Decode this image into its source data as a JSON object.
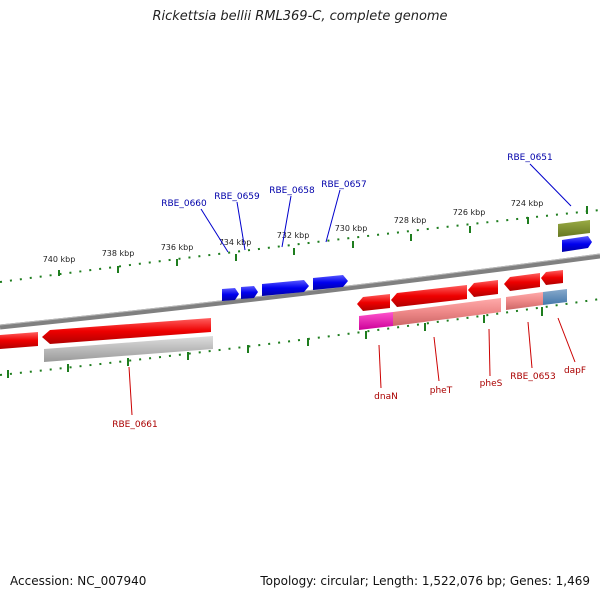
{
  "title": "Rickettsia bellii RML369-C, complete genome",
  "footer": {
    "accession": "Accession: NC_007940",
    "summary": "Topology: circular; Length: 1,522,076 bp; Genes: 1,469"
  },
  "colors": {
    "forward_label": "#0000aa",
    "reverse_label": "#aa0000",
    "tick": "#1e7d1e",
    "backbone": "#808080"
  },
  "ruler_top_labels": [
    "740 kbp",
    "738 kbp",
    "736 kbp",
    "734 kbp",
    "732 kbp",
    "730 kbp",
    "728 kbp",
    "726 kbp",
    "724 kbp"
  ],
  "top_gene_labels": [
    "RBE_0660",
    "RBE_0659",
    "RBE_0658",
    "RBE_0657",
    "RBE_0651"
  ],
  "bottom_gene_labels": [
    "RBE_0661",
    "dnaN",
    "pheT",
    "pheS",
    "RBE_0653",
    "dapF"
  ]
}
